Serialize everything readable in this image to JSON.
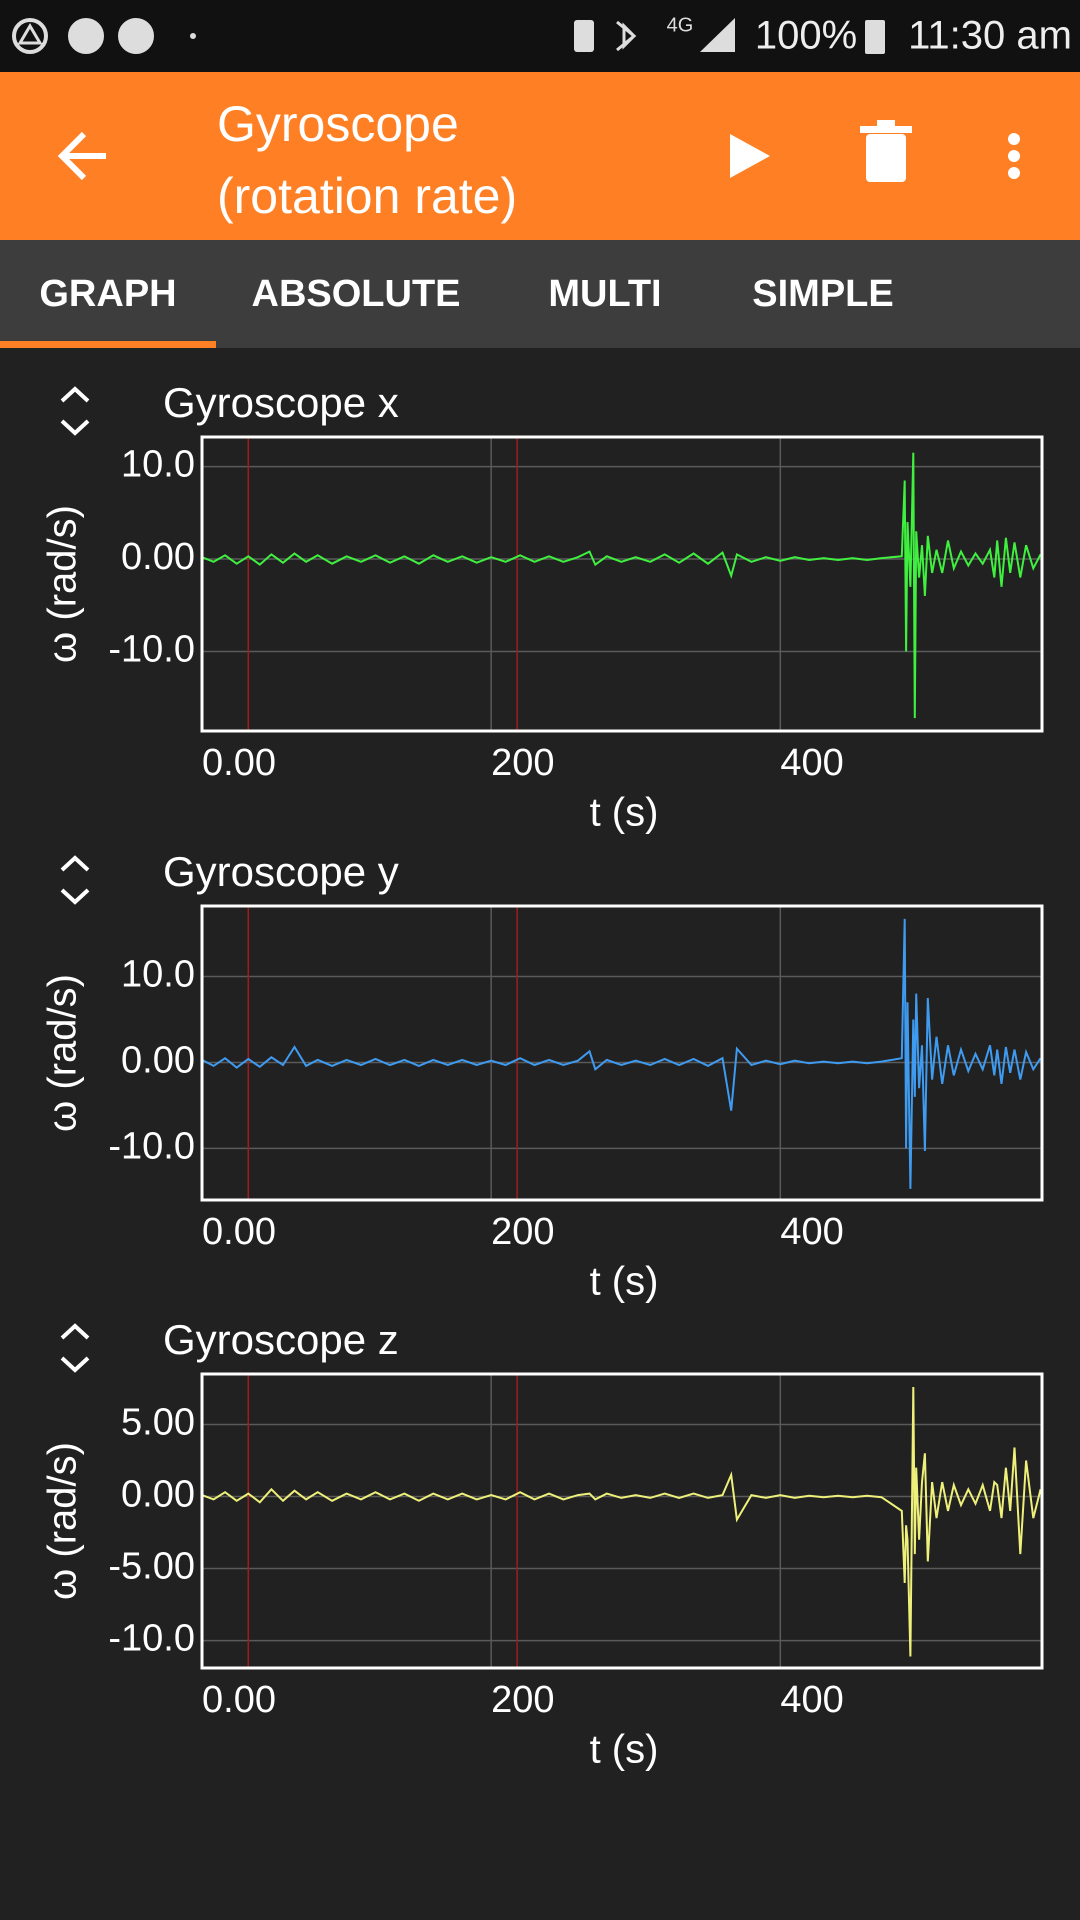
{
  "status_bar": {
    "network": "4G",
    "battery": "100%",
    "time": "11:30 am"
  },
  "app_bar": {
    "title": "Gyroscope (rotation rate)"
  },
  "tabs": [
    "GRAPH",
    "ABSOLUTE",
    "MULTI",
    "SIMPLE"
  ],
  "chart_data": [
    {
      "type": "line",
      "title": "Gyroscope x",
      "x_label": "t (s)",
      "y_label": "ω (rad/s)",
      "color": "#3ff03f",
      "grid": true,
      "xlim": [
        0,
        581
      ],
      "xticks": [
        {
          "value": 0,
          "label": "0.00"
        },
        200,
        400
      ],
      "ylim": [
        -18.6,
        13.2
      ],
      "yticks": [
        {
          "value": 10,
          "label": "10.0"
        },
        {
          "value": 0,
          "label": "0.00"
        },
        {
          "value": -10,
          "label": "-10.0"
        }
      ],
      "markers": [
        32,
        218
      ],
      "marker_color": "#a01c1c",
      "x": [
        0,
        8,
        16,
        24,
        32,
        40,
        48,
        56,
        64,
        72,
        80,
        90,
        100,
        110,
        120,
        130,
        140,
        150,
        160,
        170,
        180,
        190,
        200,
        210,
        220,
        230,
        240,
        250,
        260,
        268,
        272,
        280,
        290,
        300,
        310,
        320,
        330,
        340,
        350,
        360,
        366,
        370,
        380,
        390,
        400,
        410,
        420,
        430,
        440,
        450,
        460,
        470,
        484,
        486,
        487,
        488,
        490,
        492,
        493,
        494,
        496,
        498,
        500,
        502,
        505,
        508,
        512,
        516,
        520,
        525,
        530,
        535,
        540,
        545,
        548,
        550,
        553,
        556,
        559,
        562,
        566,
        570,
        575,
        580
      ],
      "values": [
        0.2,
        -0.3,
        0.4,
        -0.5,
        0.3,
        -0.6,
        0.5,
        -0.4,
        0.6,
        -0.3,
        0.4,
        -0.5,
        0.3,
        -0.3,
        0.4,
        -0.4,
        0.3,
        -0.5,
        0.4,
        -0.3,
        0.3,
        -0.4,
        0.2,
        -0.3,
        0.4,
        -0.3,
        0.3,
        -0.3,
        0.2,
        0.8,
        -0.6,
        0.3,
        -0.3,
        0.2,
        -0.3,
        0.5,
        -0.4,
        0.6,
        -0.5,
        0.7,
        -1.8,
        0.5,
        -0.3,
        0.2,
        -0.2,
        0.2,
        -0.1,
        0.1,
        -0.1,
        0.1,
        -0.1,
        0.1,
        0.3,
        8.5,
        -10,
        4,
        -3,
        11.5,
        -17.2,
        3,
        -2,
        1.5,
        -4,
        2.5,
        -1.5,
        1,
        -1.5,
        2,
        -1,
        0.8,
        -0.7,
        0.6,
        -0.5,
        1,
        -2,
        2,
        -3,
        2.3,
        -1.5,
        1.8,
        -2,
        1.5,
        -1,
        0.5
      ]
    },
    {
      "type": "line",
      "title": "Gyroscope y",
      "x_label": "t (s)",
      "y_label": "ω (rad/s)",
      "color": "#3f9bf0",
      "grid": true,
      "xlim": [
        0,
        581
      ],
      "xticks": [
        {
          "value": 0,
          "label": "0.00"
        },
        200,
        400
      ],
      "ylim": [
        -16,
        18.2
      ],
      "yticks": [
        {
          "value": 10,
          "label": "10.0"
        },
        {
          "value": 0,
          "label": "0.00"
        },
        {
          "value": -10,
          "label": "-10.0"
        }
      ],
      "markers": [
        32,
        218
      ],
      "marker_color": "#a01c1c",
      "x": [
        0,
        8,
        16,
        24,
        32,
        40,
        48,
        56,
        64,
        72,
        80,
        90,
        100,
        110,
        120,
        130,
        140,
        150,
        160,
        170,
        180,
        190,
        200,
        210,
        220,
        230,
        240,
        250,
        260,
        268,
        272,
        280,
        290,
        300,
        310,
        320,
        330,
        340,
        350,
        360,
        366,
        370,
        380,
        390,
        400,
        410,
        420,
        430,
        440,
        450,
        460,
        470,
        484,
        486,
        487,
        488,
        490,
        492,
        493,
        494,
        496,
        498,
        500,
        502,
        505,
        508,
        512,
        516,
        520,
        525,
        530,
        535,
        540,
        545,
        548,
        550,
        553,
        556,
        559,
        562,
        566,
        570,
        575,
        580
      ],
      "values": [
        0.3,
        -0.4,
        0.5,
        -0.6,
        0.4,
        -0.5,
        0.6,
        -0.3,
        1.8,
        -0.4,
        0.3,
        -0.4,
        0.3,
        -0.3,
        0.4,
        -0.3,
        0.3,
        -0.4,
        0.3,
        -0.3,
        0.3,
        -0.3,
        0.2,
        -0.3,
        0.5,
        -0.3,
        0.3,
        -0.3,
        0.2,
        1.3,
        -0.8,
        0.3,
        -0.3,
        0.2,
        -0.3,
        0.4,
        -0.3,
        0.4,
        -0.4,
        0.5,
        -5.6,
        1.6,
        -0.3,
        0.2,
        -0.2,
        0.2,
        -0.1,
        0.1,
        -0.1,
        0.1,
        -0.1,
        0.1,
        0.5,
        16.7,
        -10,
        7,
        -14.7,
        5,
        -4,
        8,
        -3,
        2,
        -10.3,
        7.5,
        -2,
        3,
        -2.5,
        2,
        -1.5,
        1.5,
        -1,
        1,
        -0.8,
        2,
        -1.5,
        1.5,
        -2.5,
        1.8,
        -1.2,
        1.5,
        -2,
        1.2,
        -0.8,
        0.5
      ]
    },
    {
      "type": "line",
      "title": "Gyroscope z",
      "x_label": "t (s)",
      "y_label": "ω (rad/s)",
      "color": "#eef07a",
      "grid": true,
      "xlim": [
        0,
        581
      ],
      "xticks": [
        {
          "value": 0,
          "label": "0.00"
        },
        200,
        400
      ],
      "ylim": [
        -11.9,
        8.5
      ],
      "yticks": [
        {
          "value": 5,
          "label": "5.00"
        },
        {
          "value": 0,
          "label": "0.00"
        },
        {
          "value": -5,
          "label": "-5.00"
        },
        {
          "value": -10,
          "label": "-10.0"
        }
      ],
      "markers": [
        32,
        218
      ],
      "marker_color": "#a01c1c",
      "x": [
        0,
        8,
        16,
        24,
        32,
        40,
        48,
        56,
        64,
        72,
        80,
        90,
        100,
        110,
        120,
        130,
        140,
        150,
        160,
        170,
        180,
        190,
        200,
        210,
        220,
        230,
        240,
        250,
        260,
        268,
        272,
        280,
        290,
        300,
        310,
        320,
        330,
        340,
        350,
        360,
        366,
        370,
        380,
        390,
        400,
        410,
        420,
        430,
        440,
        450,
        460,
        470,
        484,
        486,
        487,
        488,
        490,
        492,
        493,
        494,
        496,
        498,
        500,
        502,
        505,
        508,
        512,
        516,
        520,
        525,
        530,
        535,
        540,
        545,
        548,
        550,
        553,
        556,
        559,
        562,
        566,
        570,
        575,
        580
      ],
      "values": [
        0.1,
        -0.2,
        0.3,
        -0.3,
        0.2,
        -0.4,
        0.5,
        -0.3,
        0.4,
        -0.2,
        0.3,
        -0.3,
        0.2,
        -0.2,
        0.3,
        -0.2,
        0.2,
        -0.3,
        0.2,
        -0.2,
        0.2,
        -0.2,
        0.1,
        -0.2,
        0.3,
        -0.2,
        0.2,
        -0.2,
        0.1,
        0.2,
        -0.2,
        0.2,
        -0.1,
        0.1,
        -0.1,
        0.2,
        -0.1,
        0.2,
        -0.1,
        0.1,
        1.5,
        -1.6,
        0.1,
        -0.1,
        0.1,
        -0.1,
        0.05,
        -0.05,
        0.05,
        -0.05,
        0.05,
        -0.05,
        -1,
        -6,
        -2,
        -3,
        -11.1,
        7.6,
        -4,
        2,
        -3,
        1,
        3,
        -4.5,
        1,
        -1.5,
        1,
        -1,
        0.8,
        -0.6,
        0.5,
        -0.5,
        0.8,
        -1,
        1,
        0.8,
        -1.5,
        2,
        -1,
        3.4,
        -4,
        2.5,
        -1.5,
        0.5
      ]
    }
  ]
}
